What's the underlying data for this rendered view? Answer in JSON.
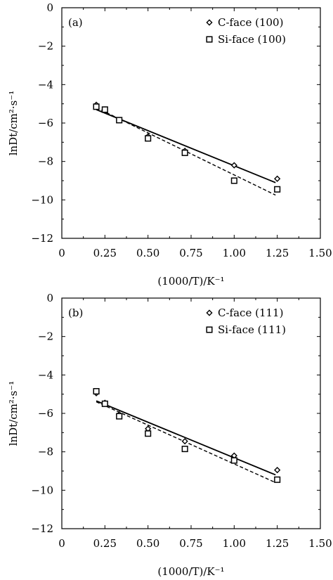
{
  "chart_data": [
    {
      "type": "scatter",
      "panel_label": "(a)",
      "xlabel": "(1000/T)/K⁻¹",
      "ylabel": "lnDt/cm²·s⁻¹",
      "xlim": [
        0,
        1.5
      ],
      "ylim": [
        -12,
        0
      ],
      "xticks": [
        "0",
        "0.25",
        "0.50",
        "0.75",
        "1.00",
        "1.25",
        "1.50"
      ],
      "yticks": [
        "0",
        "−2",
        "−4",
        "−6",
        "−8",
        "−10",
        "−12"
      ],
      "legend_position": "top-right",
      "series": [
        {
          "name": "C-face (100)",
          "marker": "diamond",
          "fit_line": "solid",
          "x": [
            0.2,
            0.25,
            0.333,
            0.5,
            0.714,
            1.0,
            1.25
          ],
          "y": [
            -5.05,
            -5.3,
            -5.85,
            -6.7,
            -7.45,
            -8.2,
            -8.9
          ],
          "fit": [
            [
              0.2,
              -5.3
            ],
            [
              1.24,
              -9.1
            ]
          ]
        },
        {
          "name": "Si-face (100)",
          "marker": "square",
          "fit_line": "dashed",
          "x": [
            0.2,
            0.25,
            0.333,
            0.5,
            0.714,
            1.0,
            1.25
          ],
          "y": [
            -5.15,
            -5.3,
            -5.85,
            -6.8,
            -7.55,
            -9.0,
            -9.45
          ],
          "fit": [
            [
              0.2,
              -5.2
            ],
            [
              1.24,
              -9.75
            ]
          ]
        }
      ]
    },
    {
      "type": "scatter",
      "panel_label": "(b)",
      "xlabel": "(1000/T)/K⁻¹",
      "ylabel": "lnDt/cm²·s⁻¹",
      "xlim": [
        0,
        1.5
      ],
      "ylim": [
        -12,
        0
      ],
      "xticks": [
        "0",
        "0.25",
        "0.50",
        "0.75",
        "1.00",
        "1.25",
        "1.50"
      ],
      "yticks": [
        "0",
        "−2",
        "−4",
        "−6",
        "−8",
        "−10",
        "−12"
      ],
      "legend_position": "top-right",
      "series": [
        {
          "name": "C-face (111)",
          "marker": "diamond",
          "fit_line": "solid",
          "x": [
            0.2,
            0.25,
            0.333,
            0.5,
            0.714,
            1.0,
            1.25
          ],
          "y": [
            -4.95,
            -5.45,
            -6.05,
            -6.8,
            -7.45,
            -8.2,
            -8.95
          ],
          "fit": [
            [
              0.2,
              -5.35
            ],
            [
              1.24,
              -9.2
            ]
          ]
        },
        {
          "name": "Si-face (111)",
          "marker": "square",
          "fit_line": "dashed",
          "x": [
            0.2,
            0.25,
            0.333,
            0.5,
            0.714,
            1.0,
            1.25
          ],
          "y": [
            -4.85,
            -5.5,
            -6.15,
            -7.05,
            -7.85,
            -8.45,
            -9.45
          ],
          "fit": [
            [
              0.2,
              -5.4
            ],
            [
              1.24,
              -9.6
            ]
          ]
        }
      ]
    }
  ]
}
